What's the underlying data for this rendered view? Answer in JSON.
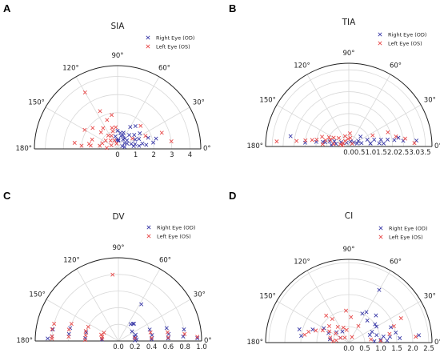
{
  "colors": {
    "right_eye": "#3a3aa8",
    "left_eye": "#e84a4a",
    "grid": "#d9d9d9",
    "axis": "#222222"
  },
  "chart_data": [
    {
      "panel": "A",
      "type": "scatter",
      "projection": "polar-half",
      "title": "SIA",
      "r_max": 4.6,
      "r_ticks": [
        0,
        1,
        2,
        3,
        4
      ],
      "r_tick_labels": [
        "0",
        "1",
        "2",
        "3",
        "4"
      ],
      "theta_ticks_deg": [
        0,
        30,
        60,
        90,
        120,
        150,
        180
      ],
      "theta_tick_labels": [
        "0°",
        "30°",
        "60°",
        "90°",
        "120°",
        "150°",
        "180°"
      ],
      "grid": true,
      "legend_location": "top-right",
      "series": [
        {
          "name": "Right Eye (OD)",
          "marker": "x",
          "points": [
            [
              0.5,
              85
            ],
            [
              0.45,
              84
            ],
            [
              0.9,
              80
            ],
            [
              0.75,
              75
            ],
            [
              0.95,
              70
            ],
            [
              0.8,
              68
            ],
            [
              1.4,
              60
            ],
            [
              1.6,
              52
            ],
            [
              0.6,
              60
            ],
            [
              0.7,
              55
            ],
            [
              1.0,
              50
            ],
            [
              1.2,
              40
            ],
            [
              1.5,
              35
            ],
            [
              1.1,
              28
            ],
            [
              1.3,
              25
            ],
            [
              1.8,
              20
            ],
            [
              0.5,
              40
            ],
            [
              0.6,
              30
            ],
            [
              0.8,
              20
            ],
            [
              1.0,
              15
            ],
            [
              1.4,
              12
            ],
            [
              1.2,
              8
            ],
            [
              0.9,
              10
            ],
            [
              0.4,
              15
            ],
            [
              0.3,
              30
            ],
            [
              0.7,
              42
            ],
            [
              2.0,
              10
            ],
            [
              1.6,
              8
            ],
            [
              2.2,
              15
            ],
            [
              0.5,
              95
            ],
            [
              0.7,
              100
            ],
            [
              1.0,
              90
            ]
          ]
        },
        {
          "name": "Left Eye (OS)",
          "marker": "x",
          "points": [
            [
              3.6,
              120
            ],
            [
              2.3,
              115
            ],
            [
              1.7,
              110
            ],
            [
              1.9,
              100
            ],
            [
              1.2,
              105
            ],
            [
              1.4,
              125
            ],
            [
              1.3,
              135
            ],
            [
              0.9,
              125
            ],
            [
              1.8,
              140
            ],
            [
              2.1,
              150
            ],
            [
              1.5,
              160
            ],
            [
              0.8,
              145
            ],
            [
              0.4,
              150
            ],
            [
              0.9,
              160
            ],
            [
              1.0,
              170
            ],
            [
              1.6,
              170
            ],
            [
              1.5,
              173
            ],
            [
              2.0,
              175
            ],
            [
              2.4,
              172
            ],
            [
              1.0,
              105
            ],
            [
              0.8,
              115
            ],
            [
              1.2,
              95
            ],
            [
              0.5,
              110
            ],
            [
              0.6,
              130
            ],
            [
              0.3,
              100
            ],
            [
              2.6,
              20
            ],
            [
              3.0,
              8
            ],
            [
              1.0,
              35
            ],
            [
              1.8,
              45
            ],
            [
              1.7,
              25
            ],
            [
              0.6,
              175
            ]
          ]
        }
      ]
    },
    {
      "panel": "B",
      "type": "scatter",
      "projection": "polar-half",
      "title": "TIA",
      "r_max": 3.8,
      "r_ticks": [
        0,
        0.5,
        1.0,
        1.5,
        2.0,
        2.5,
        3.0,
        3.5
      ],
      "r_tick_labels": [
        "0.0",
        "0.5",
        "1.0",
        "1.5",
        "2.0",
        "2.5",
        "3.0",
        "3.5"
      ],
      "theta_ticks_deg": [
        0,
        30,
        60,
        90,
        120,
        150,
        180
      ],
      "theta_tick_labels": [
        "0°",
        "30°",
        "60°",
        "90°",
        "120°",
        "150°",
        "180°"
      ],
      "grid": true,
      "legend_location": "top-right",
      "series": [
        {
          "name": "Right Eye (OD)",
          "marker": "x",
          "points": [
            [
              0.25,
              70
            ],
            [
              0.2,
              120
            ],
            [
              0.3,
              150
            ],
            [
              0.7,
              40
            ],
            [
              0.9,
              20
            ],
            [
              1.2,
              15
            ],
            [
              1.5,
              12
            ],
            [
              1.8,
              10
            ],
            [
              2.1,
              8
            ],
            [
              2.3,
              10
            ],
            [
              2.5,
              6
            ],
            [
              3.1,
              5
            ],
            [
              0.5,
              30
            ],
            [
              0.6,
              15
            ],
            [
              1.0,
              8
            ],
            [
              1.4,
              6
            ],
            [
              0.4,
              150
            ],
            [
              0.7,
              160
            ],
            [
              0.9,
              165
            ],
            [
              1.2,
              170
            ],
            [
              1.5,
              172
            ],
            [
              2.0,
              175
            ],
            [
              2.7,
              170
            ],
            [
              0.8,
              175
            ],
            [
              1.0,
              8
            ],
            [
              0.3,
              40
            ],
            [
              0.4,
              20
            ],
            [
              1.6,
              5
            ],
            [
              1.1,
              170
            ],
            [
              0.6,
              168
            ]
          ]
        },
        {
          "name": "Left Eye (OS)",
          "marker": "x",
          "points": [
            [
              0.6,
              85
            ],
            [
              0.4,
              80
            ],
            [
              0.35,
              95
            ],
            [
              0.5,
              110
            ],
            [
              0.6,
              140
            ],
            [
              0.8,
              150
            ],
            [
              1.0,
              155
            ],
            [
              1.3,
              160
            ],
            [
              1.1,
              165
            ],
            [
              1.5,
              168
            ],
            [
              1.7,
              170
            ],
            [
              2.0,
              172
            ],
            [
              2.4,
              174
            ],
            [
              3.3,
              176
            ],
            [
              0.3,
              125
            ],
            [
              0.3,
              150
            ],
            [
              0.3,
              170
            ],
            [
              0.2,
              40
            ],
            [
              1.9,
              20
            ],
            [
              2.2,
              12
            ],
            [
              2.6,
              8
            ],
            [
              3.0,
              3
            ],
            [
              1.2,
              25
            ],
            [
              0.9,
              160
            ],
            [
              0.7,
              170
            ],
            [
              1.2,
              175
            ],
            [
              0.4,
              165
            ]
          ]
        }
      ]
    },
    {
      "panel": "C",
      "type": "scatter",
      "projection": "polar-half",
      "title": "DV",
      "r_max": 1.0,
      "r_ticks": [
        0,
        0.2,
        0.4,
        0.6,
        0.8,
        1.0
      ],
      "r_tick_labels": [
        "0.0",
        "0.2",
        "0.4",
        "0.6",
        "0.8",
        "1.0"
      ],
      "theta_ticks_deg": [
        0,
        30,
        60,
        90,
        120,
        150,
        180
      ],
      "theta_tick_labels": [
        "0°",
        "30°",
        "60°",
        "90°",
        "120°",
        "150°",
        "180°"
      ],
      "grid": true,
      "legend_location": "top-right",
      "series": [
        {
          "name": "Right Eye (OD)",
          "marker": "x",
          "points": [
            [
              0.27,
              50
            ],
            [
              0.25,
              54
            ],
            [
              0.28,
              48
            ],
            [
              0.52,
              58
            ],
            [
              0.2,
              35
            ],
            [
              0.22,
              20
            ],
            [
              0.2,
              15
            ],
            [
              0.21,
              10
            ],
            [
              0.22,
              5
            ],
            [
              0.2,
              2
            ],
            [
              0.4,
              20
            ],
            [
              0.41,
              10
            ],
            [
              0.4,
              3
            ],
            [
              0.6,
              15
            ],
            [
              0.61,
              8
            ],
            [
              0.6,
              3
            ],
            [
              0.8,
              10
            ],
            [
              0.78,
              4
            ],
            [
              0.95,
              2
            ],
            [
              0.2,
              175
            ],
            [
              0.4,
              165
            ],
            [
              0.4,
              175
            ],
            [
              0.6,
              165
            ],
            [
              0.6,
              172
            ],
            [
              0.8,
              170
            ],
            [
              0.8,
              176
            ],
            [
              0.85,
              178
            ]
          ]
        },
        {
          "name": "Left Eye (OS)",
          "marker": "x",
          "points": [
            [
              0.8,
              95
            ],
            [
              0.2,
              150
            ],
            [
              0.2,
              165
            ],
            [
              0.2,
              172
            ],
            [
              0.4,
              155
            ],
            [
              0.41,
              163
            ],
            [
              0.4,
              170
            ],
            [
              0.4,
              178
            ],
            [
              0.6,
              160
            ],
            [
              0.61,
              167
            ],
            [
              0.6,
              175
            ],
            [
              0.8,
              165
            ],
            [
              0.81,
              170
            ],
            [
              0.8,
              176
            ],
            [
              0.8,
              178
            ],
            [
              0.2,
              10
            ],
            [
              0.4,
              15
            ],
            [
              0.4,
              5
            ],
            [
              0.6,
              10
            ],
            [
              0.6,
              4
            ],
            [
              0.8,
              6
            ],
            [
              0.95,
              3
            ],
            [
              0.22,
              160
            ]
          ]
        }
      ]
    },
    {
      "panel": "D",
      "type": "scatter",
      "projection": "polar-half",
      "title": "CI",
      "r_max": 2.6,
      "r_ticks": [
        0,
        0.5,
        1.0,
        1.5,
        2.0,
        2.5
      ],
      "r_tick_labels": [
        "0.0",
        "0.5",
        "1.0",
        "1.5",
        "2.0",
        "2.5"
      ],
      "theta_ticks_deg": [
        0,
        30,
        60,
        90,
        120,
        150,
        180
      ],
      "theta_tick_labels": [
        "0°",
        "30°",
        "60°",
        "90°",
        "120°",
        "150°",
        "180°"
      ],
      "grid": true,
      "legend_location": "top-right",
      "series": [
        {
          "name": "Right Eye (OD)",
          "marker": "x",
          "points": [
            [
              1.9,
              60
            ],
            [
              1.0,
              65
            ],
            [
              1.1,
              60
            ],
            [
              0.9,
              50
            ],
            [
              1.2,
              45
            ],
            [
              1.0,
              35
            ],
            [
              0.8,
              25
            ],
            [
              0.9,
              15
            ],
            [
              1.1,
              10
            ],
            [
              1.3,
              8
            ],
            [
              1.0,
              5
            ],
            [
              0.8,
              3
            ],
            [
              1.5,
              12
            ],
            [
              1.6,
              5
            ],
            [
              2.2,
              6
            ],
            [
              0.5,
              140
            ],
            [
              0.7,
              155
            ],
            [
              1.2,
              160
            ],
            [
              1.6,
              165
            ],
            [
              1.5,
              172
            ],
            [
              0.9,
              150
            ],
            [
              0.4,
              120
            ],
            [
              0.3,
              150
            ],
            [
              0.6,
              170
            ],
            [
              1.0,
              30
            ],
            [
              0.7,
              20
            ],
            [
              1.4,
              20
            ],
            [
              1.2,
              3
            ]
          ]
        },
        {
          "name": "Left Eye (OS)",
          "marker": "x",
          "points": [
            [
              1.0,
              95
            ],
            [
              0.8,
              85
            ],
            [
              0.4,
              100
            ],
            [
              0.5,
              110
            ],
            [
              0.6,
              125
            ],
            [
              0.8,
              140
            ],
            [
              0.5,
              145
            ],
            [
              0.7,
              150
            ],
            [
              0.9,
              155
            ],
            [
              1.1,
              160
            ],
            [
              1.3,
              165
            ],
            [
              0.6,
              165
            ],
            [
              0.4,
              170
            ],
            [
              0.5,
              175
            ],
            [
              0.3,
              150
            ],
            [
              0.2,
              130
            ],
            [
              1.1,
              130
            ],
            [
              0.9,
              125
            ],
            [
              1.5,
              20
            ],
            [
              1.8,
              25
            ],
            [
              1.3,
              12
            ],
            [
              1.0,
              3
            ],
            [
              0.7,
              8
            ],
            [
              2.1,
              5
            ],
            [
              0.6,
              60
            ],
            [
              0.2,
              60
            ],
            [
              1.4,
              170
            ]
          ]
        }
      ]
    }
  ]
}
